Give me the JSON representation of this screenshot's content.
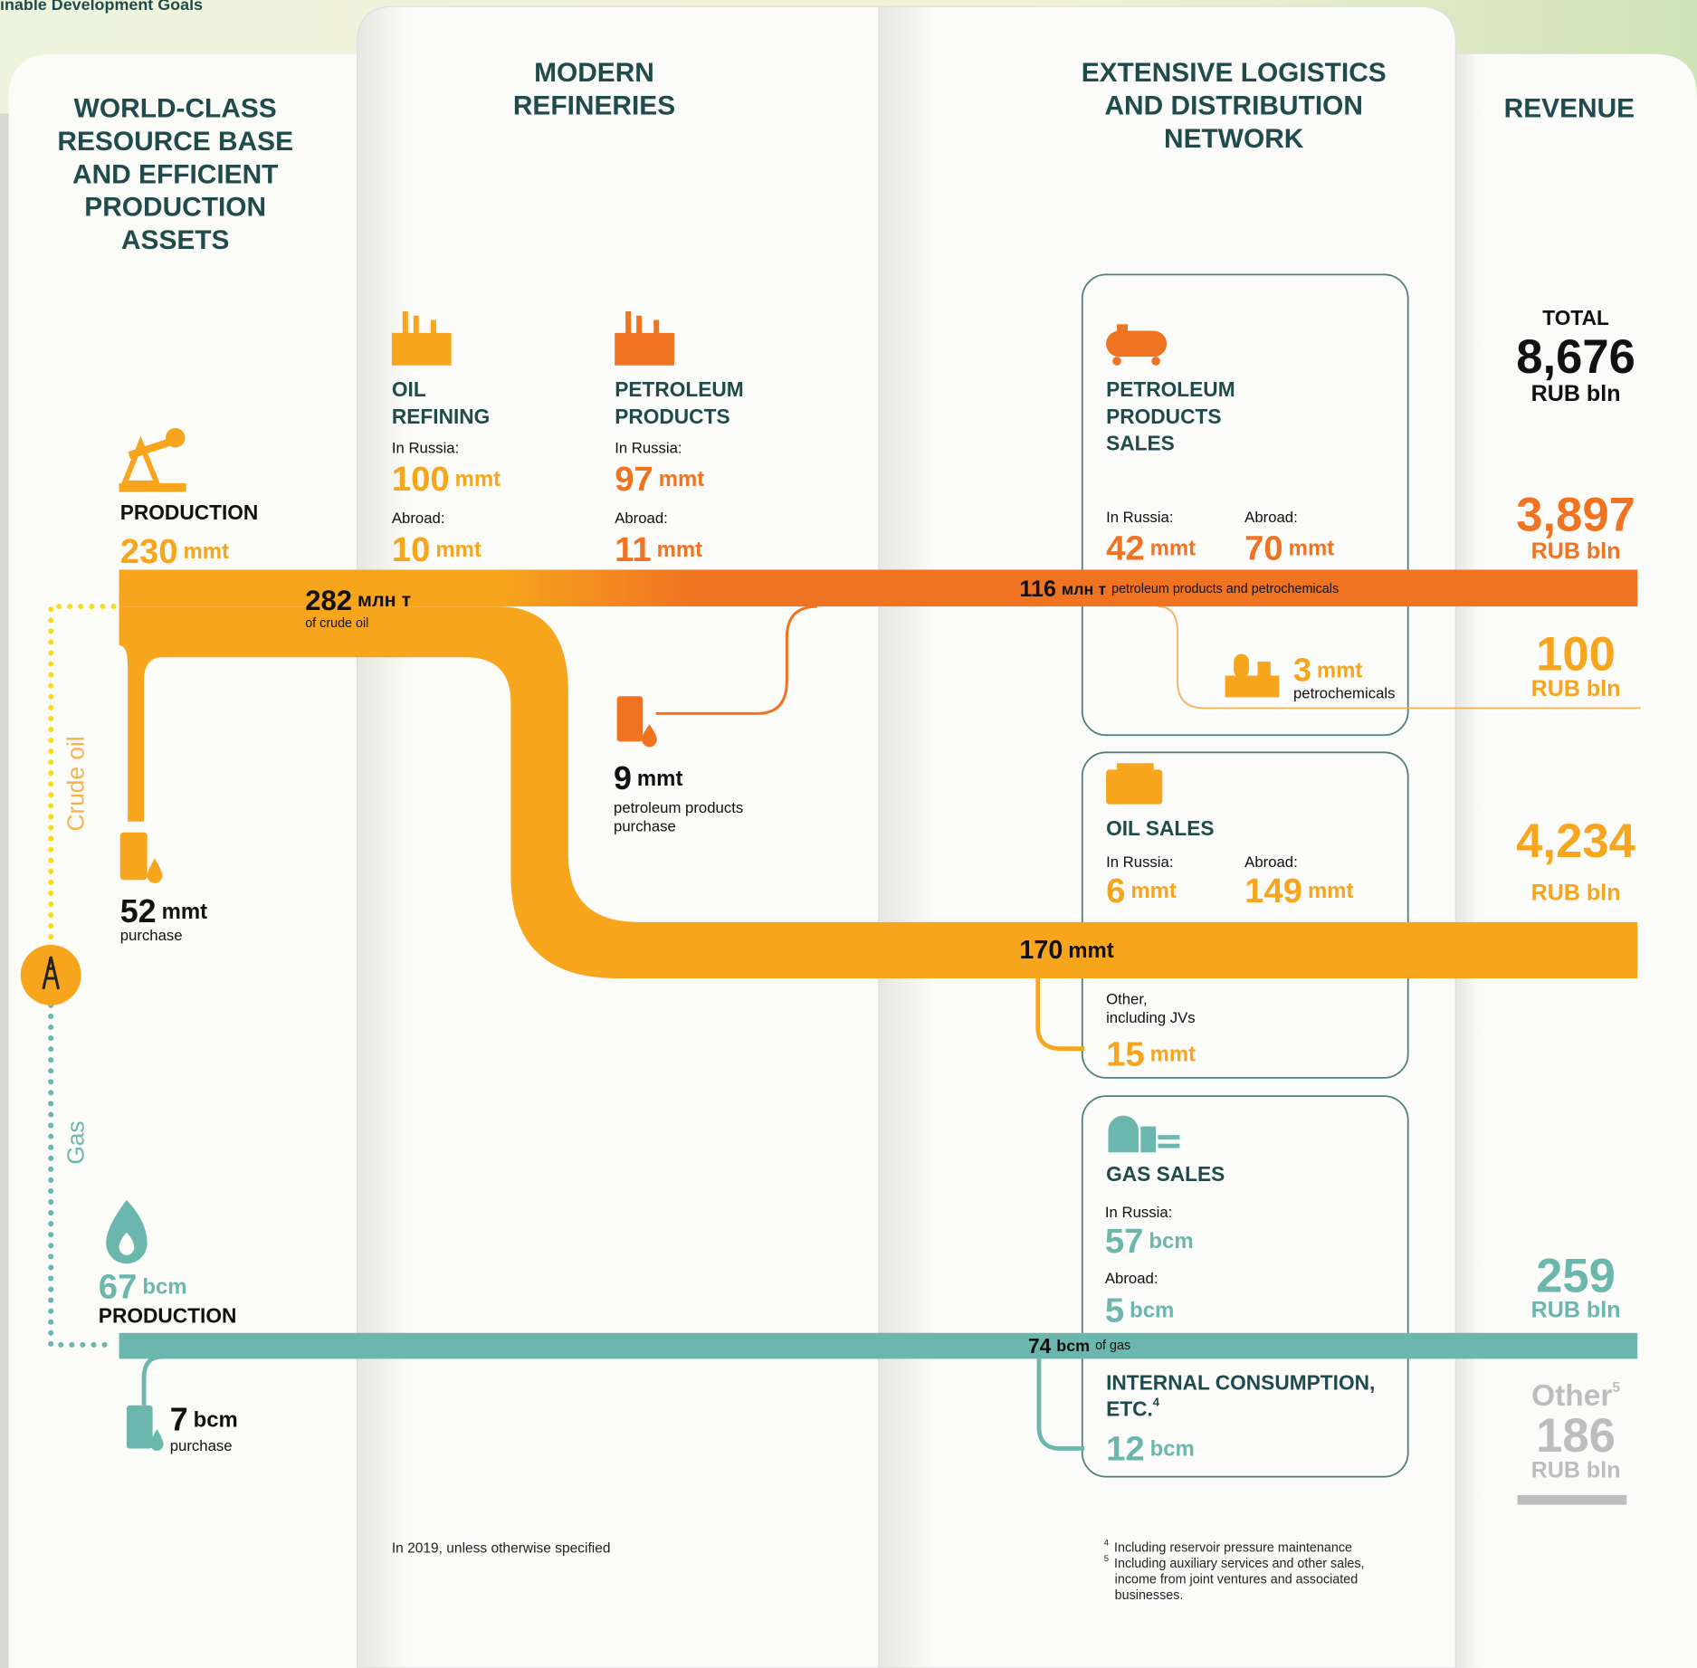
{
  "header": {
    "text": "inable Development Goals"
  },
  "columns": [
    {
      "title": [
        "WORLD-CLASS",
        "RESOURCE BASE",
        "AND EFFICIENT",
        "PRODUCTION",
        "ASSETS"
      ]
    },
    {
      "title": [
        "MODERN",
        "REFINERIES"
      ]
    },
    {
      "title": [
        "EXTENSIVE LOGISTICS",
        "AND DISTRIBUTION",
        "NETWORK"
      ]
    },
    {
      "title": [
        "REVENUE"
      ]
    }
  ],
  "production": {
    "oil": {
      "label": "PRODUCTION",
      "value": 230,
      "unit": "mmt"
    },
    "oil_purchase": {
      "value": 52,
      "unit": "mmt",
      "label": "purchase"
    },
    "gas": {
      "value": 67,
      "unit": "bcm",
      "label": "PRODUCTION"
    },
    "gas_purchase": {
      "value": 7,
      "unit": "bcm",
      "label": "purchase"
    }
  },
  "flows": {
    "crude_oil_label": "Crude oil",
    "gas_label": "Gas",
    "crude": {
      "value": 282,
      "unit": "млн т",
      "label": "of crude oil"
    },
    "products": {
      "value": 116,
      "unit": "млн т",
      "label": "petroleum products and petrochemicals"
    },
    "oil": {
      "value": 170,
      "unit": "mmt"
    },
    "gas": {
      "value": 74,
      "unit": "bcm",
      "label": "of gas"
    }
  },
  "refining": {
    "oil": {
      "title": [
        "OIL",
        "REFINING"
      ],
      "russia": {
        "label": "In Russia:",
        "value": 100,
        "unit": "mmt"
      },
      "abroad": {
        "label": "Abroad:",
        "value": 10,
        "unit": "mmt"
      }
    },
    "products": {
      "title": [
        "PETROLEUM",
        "PRODUCTS"
      ],
      "russia": {
        "label": "In Russia:",
        "value": 97,
        "unit": "mmt"
      },
      "abroad": {
        "label": "Abroad:",
        "value": 11,
        "unit": "mmt"
      }
    },
    "purchase": {
      "value": 9,
      "unit": "mmt",
      "label": [
        "petroleum products",
        "purchase"
      ]
    }
  },
  "sales": {
    "products": {
      "title": [
        "PETROLEUM",
        "PRODUCTS",
        "SALES"
      ],
      "russia": {
        "label": "In Russia:",
        "value": 42,
        "unit": "mmt"
      },
      "abroad": {
        "label": "Abroad:",
        "value": 70,
        "unit": "mmt"
      }
    },
    "petrochemicals": {
      "value": 3,
      "unit": "mmt",
      "label": "petrochemicals"
    },
    "oil": {
      "title": "OIL SALES",
      "russia": {
        "label": "In Russia:",
        "value": 6,
        "unit": "mmt"
      },
      "abroad": {
        "label": "Abroad:",
        "value": 149,
        "unit": "mmt"
      }
    },
    "other": {
      "label": [
        "Other,",
        "including JVs"
      ],
      "value": 15,
      "unit": "mmt"
    },
    "gas": {
      "title": "GAS SALES",
      "russia": {
        "label": "In Russia:",
        "value": 57,
        "unit": "bcm"
      },
      "abroad": {
        "label": "Abroad:",
        "value": 5,
        "unit": "bcm"
      }
    },
    "internal": {
      "title": [
        "INTERNAL CONSUMPTION,",
        "ETC."
      ],
      "note": "4",
      "value": 12,
      "unit": "bcm"
    }
  },
  "revenue": {
    "total": {
      "label": "TOTAL",
      "value": "8,676",
      "unit": "RUB bln"
    },
    "products": {
      "value": "3,897",
      "unit": "RUB bln"
    },
    "petrochemicals": {
      "value": 100,
      "unit": "RUB bln"
    },
    "oil": {
      "value": "4,234",
      "unit": "RUB bln"
    },
    "gas": {
      "value": 259,
      "unit": "RUB bln"
    },
    "other": {
      "label": "Other",
      "note": "5",
      "value": 186,
      "unit": "RUB bln"
    }
  },
  "notes": {
    "period": "In 2019, unless otherwise specified",
    "footnotes": [
      {
        "mark": "4",
        "lines": [
          "Including reservoir pressure maintenance"
        ]
      },
      {
        "mark": "5",
        "lines": [
          "Including auxiliary services and other sales,",
          "income from joint ventures and associated",
          "businesses."
        ]
      }
    ]
  }
}
